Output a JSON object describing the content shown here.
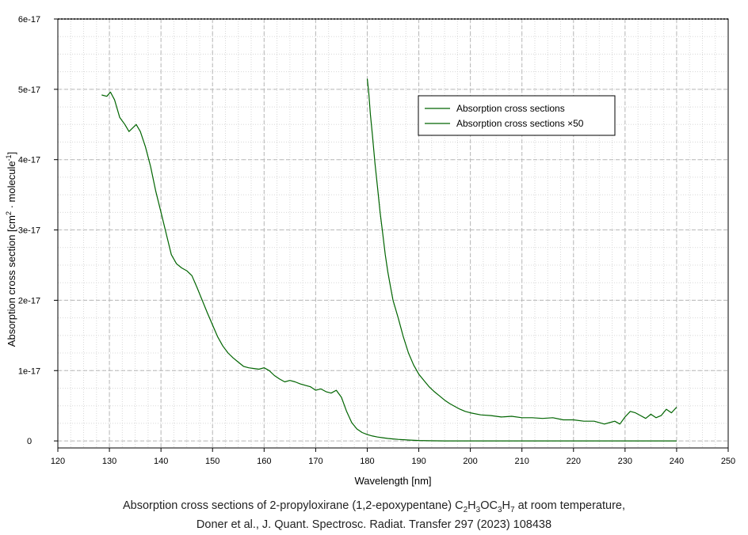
{
  "chart_data": {
    "type": "line",
    "xlabel": "Wavelength [nm]",
    "ylabel": "Absorption cross section [cm² · molecule⁻¹]",
    "xlim": [
      120,
      250
    ],
    "ylim": [
      -1e-18,
      6e-17
    ],
    "xticks": [
      120,
      130,
      140,
      150,
      160,
      170,
      180,
      190,
      200,
      210,
      220,
      230,
      240,
      250
    ],
    "yticks": [
      {
        "value": 0,
        "label": "0"
      },
      {
        "value": 1e-17,
        "label": "1e-17"
      },
      {
        "value": 2e-17,
        "label": "2e-17"
      },
      {
        "value": 3e-17,
        "label": "3e-17"
      },
      {
        "value": 4e-17,
        "label": "4e-17"
      },
      {
        "value": 5e-17,
        "label": "5e-17"
      },
      {
        "value": 6e-17,
        "label": "6e-17"
      }
    ],
    "grid": true,
    "legend_position": "top-right",
    "line_color": "#006400",
    "series": [
      {
        "name": "Absorption cross sections",
        "x": [
          128.5,
          129.5,
          130.2,
          131,
          132,
          133,
          133.8,
          134.5,
          135.2,
          136,
          137,
          138,
          139,
          140,
          141,
          142,
          143,
          144,
          145,
          146,
          147,
          148,
          149,
          150,
          151,
          152,
          153,
          154,
          155,
          156,
          157,
          158,
          159,
          160,
          161,
          162,
          163,
          164,
          165,
          166,
          167,
          168,
          169,
          170,
          171,
          172,
          173,
          174,
          175,
          176,
          177,
          178,
          179,
          180,
          181,
          182,
          183,
          184,
          185,
          186,
          188,
          190,
          192,
          195,
          200,
          210,
          220,
          230,
          240
        ],
        "y": [
          4.92e-17,
          4.9e-17,
          4.96e-17,
          4.85e-17,
          4.6e-17,
          4.5e-17,
          4.4e-17,
          4.45e-17,
          4.5e-17,
          4.4e-17,
          4.18e-17,
          3.9e-17,
          3.55e-17,
          3.25e-17,
          2.95e-17,
          2.65e-17,
          2.52e-17,
          2.46e-17,
          2.42e-17,
          2.35e-17,
          2.18e-17,
          2e-17,
          1.82e-17,
          1.65e-17,
          1.48e-17,
          1.35e-17,
          1.25e-17,
          1.18e-17,
          1.12e-17,
          1.06e-17,
          1.04e-17,
          1.03e-17,
          1.02e-17,
          1.04e-17,
          1e-17,
          9.3e-18,
          8.8e-18,
          8.4e-18,
          8.6e-18,
          8.4e-18,
          8.1e-18,
          7.9e-18,
          7.7e-18,
          7.2e-18,
          7.4e-18,
          7e-18,
          6.8e-18,
          7.2e-18,
          6.2e-18,
          4.2e-18,
          2.6e-18,
          1.7e-18,
          1.2e-18,
          9e-19,
          7e-19,
          5.5e-19,
          4.5e-19,
          3.5e-19,
          2.8e-19,
          2.2e-19,
          1.2e-19,
          6e-20,
          2e-20,
          5e-21,
          0,
          0,
          0,
          0,
          0
        ]
      },
      {
        "name": "Absorption cross sections ×50",
        "x": [
          180,
          180.3,
          180.6,
          181,
          181.5,
          182,
          182.5,
          183,
          183.5,
          184,
          184.5,
          185,
          186,
          187,
          188,
          189,
          190,
          191,
          192,
          193,
          194,
          195,
          196,
          197,
          198,
          199,
          200,
          202,
          204,
          206,
          208,
          210,
          212,
          214,
          216,
          218,
          220,
          222,
          224,
          226,
          227,
          228,
          229,
          230,
          231,
          232,
          233,
          234,
          235,
          236,
          237,
          238,
          239,
          240
        ],
        "y": [
          5.15e-17,
          4.95e-17,
          4.65e-17,
          4.35e-17,
          3.95e-17,
          3.6e-17,
          3.25e-17,
          2.95e-17,
          2.65e-17,
          2.4e-17,
          2.2e-17,
          2e-17,
          1.75e-17,
          1.48e-17,
          1.25e-17,
          1.08e-17,
          9.5e-18,
          8.6e-18,
          7.7e-18,
          7e-18,
          6.4e-18,
          5.8e-18,
          5.3e-18,
          4.9e-18,
          4.5e-18,
          4.2e-18,
          4e-18,
          3.7e-18,
          3.6e-18,
          3.4e-18,
          3.5e-18,
          3.3e-18,
          3.3e-18,
          3.2e-18,
          3.3e-18,
          3e-18,
          3e-18,
          2.8e-18,
          2.8e-18,
          2.4e-18,
          2.6e-18,
          2.8e-18,
          2.4e-18,
          3.4e-18,
          4.2e-18,
          4e-18,
          3.6e-18,
          3.2e-18,
          3.8e-18,
          3.3e-18,
          3.6e-18,
          4.5e-18,
          4e-18,
          4.8e-18
        ]
      }
    ]
  },
  "caption": {
    "line1_prefix": "Absorption cross sections of 2-propyloxirane (1,2-epoxypentane) ",
    "formula": [
      {
        "text": "C",
        "sub": "2"
      },
      {
        "text": "H",
        "sub": "3"
      },
      {
        "text": "OC",
        "sub": "3"
      },
      {
        "text": "H",
        "sub": "7"
      }
    ],
    "line1_suffix": " at room temperature,",
    "line2": "Doner et al., J. Quant. Spectrosc. Radiat. Transfer 297 (2023) 108438"
  }
}
